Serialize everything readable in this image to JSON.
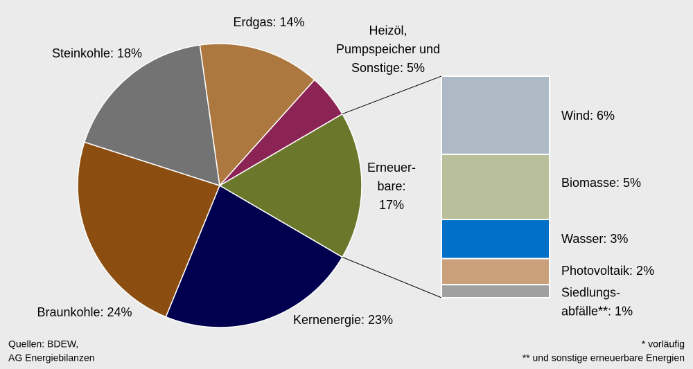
{
  "chart_data": [
    {
      "type": "pie",
      "values": [
        17,
        23,
        24,
        18,
        14,
        5
      ],
      "value_labels": [
        [
          "Erneuer-",
          "bare:",
          "17%"
        ],
        [
          "Kernenergie: 23%"
        ],
        [
          "Braunkohle: 24%"
        ],
        [
          "Steinkohle: 18%"
        ],
        [
          "Erdgas: 14%"
        ],
        [
          "Heizöl,",
          "Pumpspeicher und",
          "Sonstige: 5%"
        ]
      ],
      "colors": [
        "#6b782b",
        "#00004f",
        "#8b4e10",
        "#737373",
        "#ad7840",
        "#8b2355"
      ]
    },
    {
      "type": "stacked-bar",
      "values": [
        6,
        5,
        3,
        2,
        1
      ],
      "value_labels": [
        [
          "Wind: 6%"
        ],
        [
          "Biomasse: 5%"
        ],
        [
          "Wasser: 3%"
        ],
        [
          "Photovoltaik: 2%"
        ],
        [
          "Siedlungs-",
          "abfälle**: 1%"
        ]
      ],
      "colors": [
        "#adb9c5",
        "#b8bf9a",
        "#0070c8",
        "#c9a07a",
        "#a0a0a0"
      ]
    }
  ],
  "source": [
    "Quellen: BDEW,",
    "AG Energiebilanzen"
  ],
  "footnotes": [
    "* vorläufig",
    "** und sonstige erneuerbare Energien"
  ]
}
